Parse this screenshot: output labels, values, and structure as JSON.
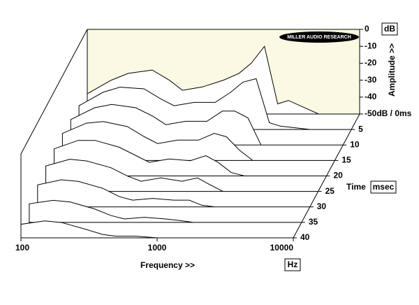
{
  "chart_data": {
    "type": "waterfall",
    "annotation": "MILLER AUDIO RESEARCH",
    "x_label": "Frequency >>",
    "x_unit": "Hz",
    "y_label": "Amplitude >>",
    "y_unit": "dB",
    "z_label": "Time",
    "z_unit": "msec",
    "xscale": "log",
    "x": [
      100,
      150,
      200,
      300,
      400,
      500,
      700,
      1000,
      1300,
      1600,
      2000,
      2500,
      3000,
      5000,
      10000
    ],
    "xlim": [
      100,
      10000
    ],
    "xticks": [
      100,
      1000,
      10000
    ],
    "ylim": [
      -50,
      0
    ],
    "yticks": [
      0,
      -10,
      -20,
      -30,
      -40,
      {
        "value": -50,
        "label": "-50dB / 0ms"
      }
    ],
    "zlim": [
      0,
      40
    ],
    "zticks": [
      5,
      10,
      15,
      20,
      25,
      30,
      35,
      40
    ],
    "color": "#000000",
    "fill": "#ffffff",
    "background": "#fbf8e3",
    "slices": [
      {
        "t": 0,
        "values": [
          -38,
          -30,
          -26,
          -24,
          -30,
          -36,
          -34,
          -30,
          -26,
          -20,
          -10,
          -44,
          -42,
          -50,
          -50
        ]
      },
      {
        "t": 5,
        "values": [
          -36,
          -28,
          -25,
          -26,
          -32,
          -36,
          -34,
          -34,
          -28,
          -22,
          -20,
          -46,
          -48,
          -50,
          -50
        ]
      },
      {
        "t": 10,
        "values": [
          -35,
          -28,
          -26,
          -28,
          -33,
          -38,
          -36,
          -36,
          -30,
          -30,
          -34,
          -50,
          -50,
          -50,
          -50
        ]
      },
      {
        "t": 15,
        "values": [
          -34,
          -28,
          -27,
          -30,
          -36,
          -40,
          -38,
          -38,
          -34,
          -36,
          -44,
          -50,
          -50,
          -50,
          -50
        ]
      },
      {
        "t": 20,
        "values": [
          -34,
          -29,
          -29,
          -33,
          -38,
          -42,
          -40,
          -41,
          -38,
          -42,
          -48,
          -50,
          -50,
          -50,
          -50
        ]
      },
      {
        "t": 25,
        "values": [
          -35,
          -31,
          -32,
          -36,
          -41,
          -44,
          -42,
          -44,
          -42,
          -46,
          -50,
          -50,
          -50,
          -50,
          -50
        ]
      },
      {
        "t": 30,
        "values": [
          -37,
          -34,
          -35,
          -39,
          -44,
          -46,
          -45,
          -46,
          -46,
          -49,
          -50,
          -50,
          -50,
          -50,
          -50
        ]
      },
      {
        "t": 35,
        "values": [
          -39,
          -37,
          -38,
          -42,
          -46,
          -48,
          -47,
          -48,
          -49,
          -50,
          -50,
          -50,
          -50,
          -50,
          -50
        ]
      },
      {
        "t": 40,
        "values": [
          -42,
          -40,
          -41,
          -45,
          -48,
          -49,
          -49,
          -50,
          -50,
          -50,
          -50,
          -50,
          -50,
          -50,
          -50
        ]
      }
    ]
  }
}
